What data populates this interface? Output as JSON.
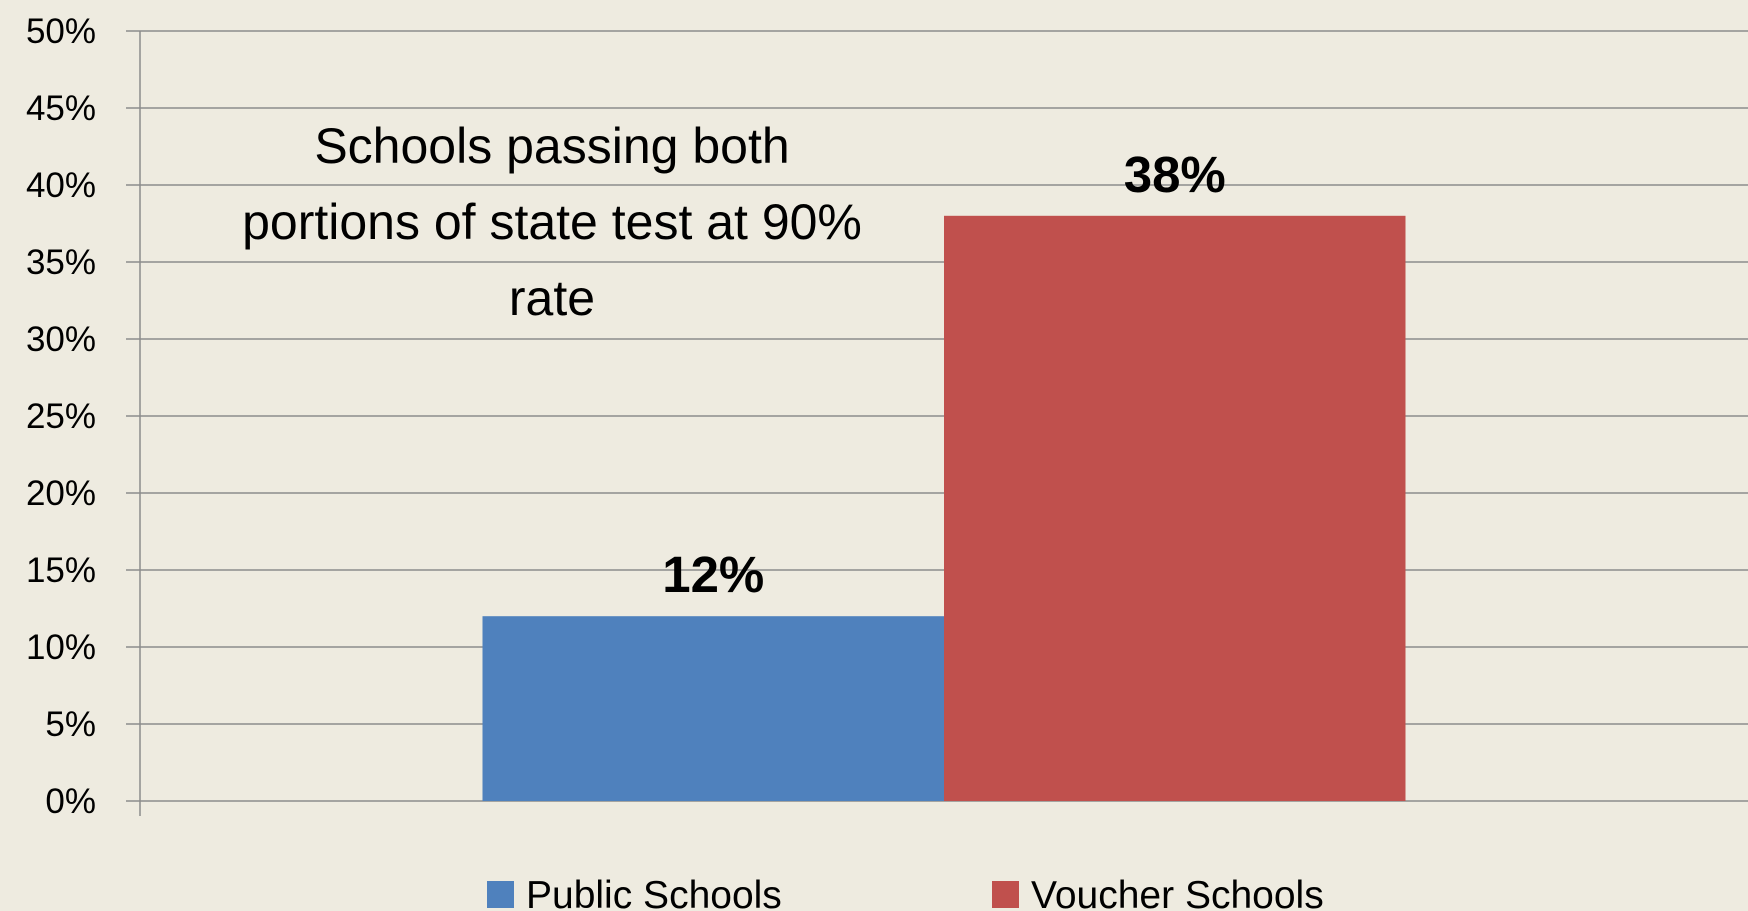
{
  "chart_data": {
    "type": "bar",
    "title": "Schools passing both portions of state test at 90% rate",
    "categories": [
      null
    ],
    "series": [
      {
        "name": "Public Schools",
        "color": "#4f81bd",
        "values": [
          12
        ],
        "value_labels": [
          "12%"
        ]
      },
      {
        "name": "Voucher Schools",
        "color": "#c0504d",
        "values": [
          38
        ],
        "value_labels": [
          "38%"
        ]
      }
    ],
    "ylim": [
      0,
      50
    ],
    "yticks": [
      {
        "value": 0,
        "label": "0%"
      },
      {
        "value": 5,
        "label": "5%"
      },
      {
        "value": 10,
        "label": "10%"
      },
      {
        "value": 15,
        "label": "15%"
      },
      {
        "value": 20,
        "label": "20%"
      },
      {
        "value": 25,
        "label": "25%"
      },
      {
        "value": 30,
        "label": "30%"
      },
      {
        "value": 35,
        "label": "35%"
      },
      {
        "value": 40,
        "label": "40%"
      },
      {
        "value": 45,
        "label": "45%"
      },
      {
        "value": 50,
        "label": "50%"
      }
    ],
    "grid": true,
    "legend": "bottom"
  }
}
